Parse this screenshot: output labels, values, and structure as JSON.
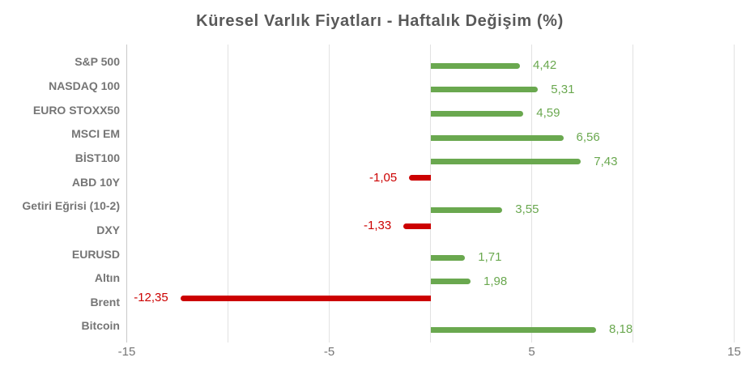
{
  "chart_data": {
    "type": "bar",
    "orientation": "horizontal",
    "title": "Küresel Varlık Fiyatları - Haftalık Değişim (%)",
    "categories": [
      "S&P 500",
      "NASDAQ 100",
      "EURO STOXX50",
      "MSCI EM",
      "BİST100",
      "ABD 10Y",
      "Getiri Eğrisi (10-2)",
      "DXY",
      "EURUSD",
      "Altın",
      "Brent",
      "Bitcoin"
    ],
    "values": [
      4.42,
      5.31,
      4.59,
      6.56,
      7.43,
      -1.05,
      3.55,
      -1.33,
      1.71,
      1.98,
      -12.35,
      8.18
    ],
    "value_labels": [
      "4,42",
      "5,31",
      "4,59",
      "6,56",
      "7,43",
      "-1,05",
      "3,55",
      "-1,33",
      "1,71",
      "1,98",
      "-12,35",
      "8,18"
    ],
    "xlim": [
      -15,
      15
    ],
    "grid_ticks": [
      -15,
      -10,
      -5,
      0,
      5,
      10,
      15
    ],
    "x_tick_labels": [
      {
        "value": -15,
        "label": "-15"
      },
      {
        "value": -5,
        "label": "-5"
      },
      {
        "value": 5,
        "label": "5"
      },
      {
        "value": 15,
        "label": "15"
      }
    ],
    "xlabel": "",
    "ylabel": "",
    "legend": null,
    "grid": "vertical-only",
    "colors": {
      "positive_bar": "#6aa84f",
      "negative_bar": "#cc0000",
      "title_text": "#595959",
      "category_text": "#757575",
      "axis_tick_text": "#757575",
      "gridline": "#e2e2e2",
      "axis_line": "#c9c9c9",
      "background": "#ffffff"
    }
  }
}
